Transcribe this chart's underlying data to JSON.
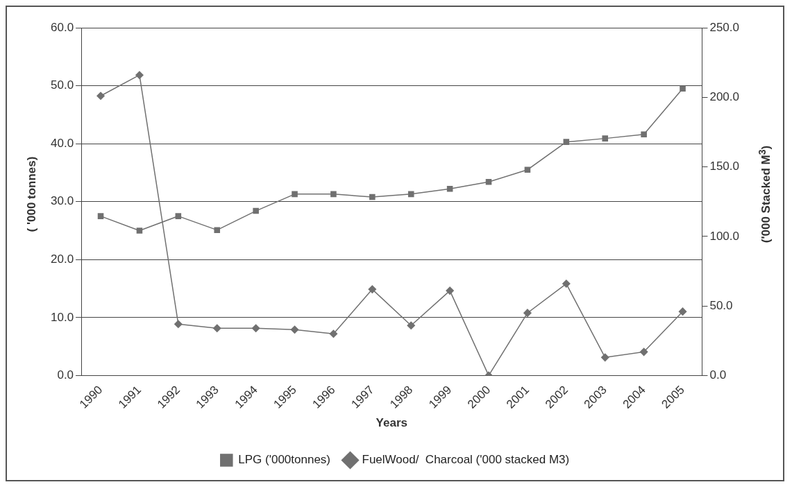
{
  "chart_data": {
    "type": "line",
    "xlabel": "Years",
    "ylabel": "( '000 tonnes)",
    "y2label": "('000 Stacked M$^{3}$)",
    "categories": [
      "1990",
      "1991",
      "1992",
      "1993",
      "1994",
      "1995",
      "1996",
      "1997",
      "1998",
      "1999",
      "2000",
      "2001",
      "2002",
      "2003",
      "2004",
      "2005"
    ],
    "series": [
      {
        "name": "LPG ('000tonnes)",
        "color": "#707070",
        "marker": "square",
        "values": [
          27.5,
          25.0,
          27.5,
          25.1,
          28.4,
          31.3,
          31.3,
          30.8,
          31.3,
          32.2,
          33.4,
          35.5,
          40.3,
          40.9,
          41.6,
          49.5
        ]
      },
      {
        "name": "FuelWood/  Charcoal ('000 stacked M3)",
        "color": "#707070",
        "marker": "diamond",
        "axis": "y2",
        "values": [
          201,
          216,
          37,
          34,
          34,
          33,
          30,
          62,
          36,
          61,
          0,
          45,
          66,
          13,
          17,
          46
        ]
      }
    ],
    "ylim": [
      0,
      60
    ],
    "yticks": [
      {
        "value": 0,
        "label": "0.0"
      },
      {
        "value": 10,
        "label": "10.0"
      },
      {
        "value": 20,
        "label": "20.0"
      },
      {
        "value": 30,
        "label": "30.0"
      },
      {
        "value": 40,
        "label": "40.0"
      },
      {
        "value": 50,
        "label": "50.0"
      },
      {
        "value": 60,
        "label": "60.0"
      }
    ],
    "y2lim": [
      0,
      250
    ],
    "y2ticks": [
      {
        "value": 0,
        "label": "0.0"
      },
      {
        "value": 50,
        "label": "50.0"
      },
      {
        "value": 100,
        "label": "100.0"
      },
      {
        "value": 150,
        "label": "150.0"
      },
      {
        "value": 200,
        "label": "200.0"
      },
      {
        "value": 250,
        "label": "250.0"
      }
    ],
    "grid": "y",
    "legend": "bottom",
    "line_style": "solid"
  }
}
